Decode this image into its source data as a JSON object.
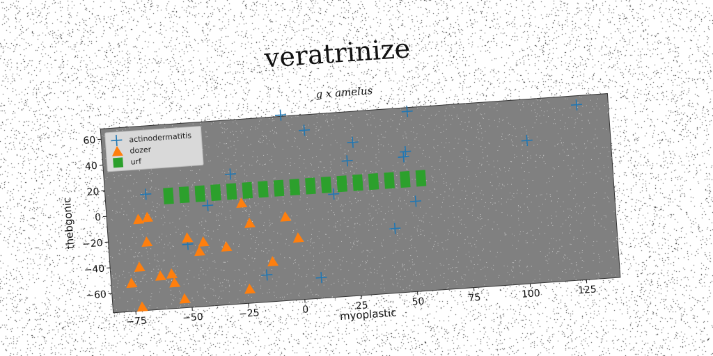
{
  "chart_data": {
    "type": "scatter",
    "title": "veratrinize",
    "subtitle": "g x amelus",
    "xlabel": "myoplastic",
    "ylabel": "thebgonic",
    "xlim": [
      -85,
      140
    ],
    "ylim": [
      -75,
      68
    ],
    "xticks": [
      -75,
      -50,
      -25,
      0,
      25,
      50,
      75,
      100,
      125
    ],
    "yticks": [
      -60,
      -40,
      -20,
      0,
      20,
      40,
      60
    ],
    "grid": false,
    "legend_position": "top-left",
    "background_color": "#808080",
    "series": [
      {
        "name": "actinodermatitis",
        "marker": "plus",
        "color": "#1f77b4",
        "points": [
          [
            -67,
            15
          ],
          [
            -40,
            3
          ],
          [
            -29,
            26
          ],
          [
            -50,
            -26
          ],
          [
            -5,
            69
          ],
          [
            5,
            56
          ],
          [
            23,
            30
          ],
          [
            26,
            44
          ],
          [
            16,
            5
          ],
          [
            49,
            34
          ],
          [
            48,
            30
          ],
          [
            51,
            65
          ],
          [
            52,
            -5
          ],
          [
            42,
            -25
          ],
          [
            103,
            36
          ],
          [
            126,
            61
          ],
          [
            -16,
            -54
          ],
          [
            8,
            -59
          ]
        ]
      },
      {
        "name": "dozer",
        "marker": "triangle",
        "color": "#ff7f0e",
        "points": [
          [
            -71,
            -4
          ],
          [
            -67,
            -3
          ],
          [
            -68,
            -22
          ],
          [
            -72,
            -41
          ],
          [
            -76,
            -53
          ],
          [
            -63,
            -49
          ],
          [
            -58,
            -48
          ],
          [
            -57,
            -55
          ],
          [
            -53,
            -68
          ],
          [
            -72,
            -72
          ],
          [
            -50,
            -21
          ],
          [
            -43,
            -25
          ],
          [
            -45,
            -32
          ],
          [
            -33,
            -30
          ],
          [
            -25,
            3
          ],
          [
            -22,
            -13
          ],
          [
            -13,
            -44
          ],
          [
            -6,
            -10
          ],
          [
            -1,
            -27
          ],
          [
            -24,
            -64
          ]
        ]
      },
      {
        "name": "urf",
        "marker": "square",
        "color": "#2ca02c",
        "points": [
          [
            -57,
            15
          ],
          [
            -50,
            15
          ],
          [
            -43,
            15
          ],
          [
            -36,
            15
          ],
          [
            -29,
            15
          ],
          [
            -22,
            15
          ],
          [
            -15,
            15
          ],
          [
            -8,
            15
          ],
          [
            -1,
            15
          ],
          [
            6,
            15
          ],
          [
            13,
            15
          ],
          [
            20,
            15
          ],
          [
            27,
            15
          ],
          [
            34,
            15
          ],
          [
            41,
            15
          ],
          [
            48,
            15
          ],
          [
            55,
            15
          ],
          [
            -57,
            10
          ],
          [
            -50,
            10
          ],
          [
            -43,
            10
          ],
          [
            -36,
            10
          ],
          [
            -29,
            10
          ],
          [
            -22,
            10
          ],
          [
            -15,
            10
          ],
          [
            -8,
            10
          ],
          [
            -1,
            10
          ],
          [
            6,
            10
          ],
          [
            13,
            10
          ],
          [
            20,
            10
          ],
          [
            27,
            10
          ],
          [
            34,
            10
          ],
          [
            41,
            10
          ],
          [
            48,
            10
          ],
          [
            55,
            10
          ]
        ]
      }
    ]
  }
}
